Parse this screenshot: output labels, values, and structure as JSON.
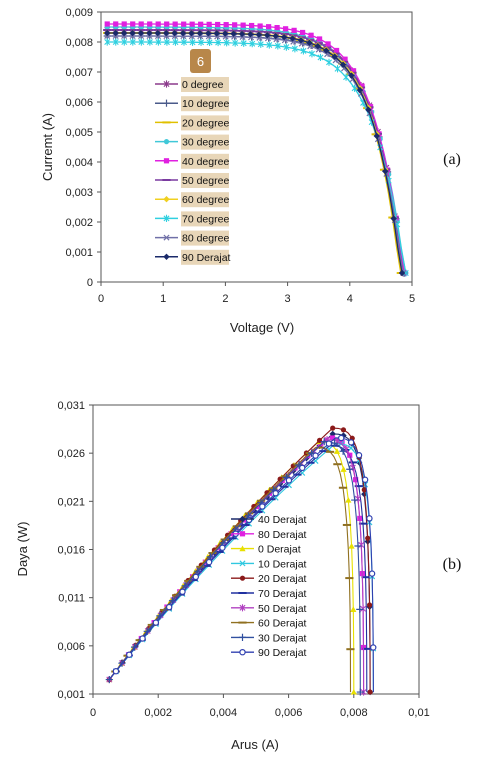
{
  "chart_data": [
    {
      "type": "line",
      "panel_label": "(a)",
      "badge": "6",
      "xlabel": "Voltage  (V)",
      "ylabel": "Curremt (A)",
      "xlim": [
        0,
        5
      ],
      "ylim": [
        0,
        0.009
      ],
      "xticks": [
        "0",
        "1",
        "2",
        "3",
        "4",
        "5"
      ],
      "yticks": [
        "0",
        "0,001",
        "0,002",
        "0,003",
        "0,004",
        "0,005",
        "0,006",
        "0,007",
        "0,008",
        "0,009"
      ],
      "legend_position": "left-center",
      "series": [
        {
          "name": "0 degree",
          "color": "#8b3a8b",
          "marker": "asterisk",
          "isc": 0.0084,
          "voc": 4.86,
          "k": 0.45
        },
        {
          "name": "10 degree",
          "color": "#4a5a8a",
          "marker": "plus",
          "isc": 0.0082,
          "voc": 4.88,
          "k": 0.46
        },
        {
          "name": "20 degree",
          "color": "#e0c000",
          "marker": "dash",
          "isc": 0.0083,
          "voc": 4.82,
          "k": 0.45
        },
        {
          "name": "30 degree",
          "color": "#40c8d8",
          "marker": "circle",
          "isc": 0.0085,
          "voc": 4.9,
          "k": 0.5
        },
        {
          "name": "40 degree",
          "color": "#e020e0",
          "marker": "square",
          "isc": 0.0086,
          "voc": 4.88,
          "k": 0.48
        },
        {
          "name": "50 degree",
          "color": "#7a3aa0",
          "marker": "dash",
          "isc": 0.0084,
          "voc": 4.86,
          "k": 0.46
        },
        {
          "name": "60 degree",
          "color": "#f0d020",
          "marker": "diamond",
          "isc": 0.0083,
          "voc": 4.84,
          "k": 0.45
        },
        {
          "name": "70 degree",
          "color": "#30d0e0",
          "marker": "asterisk",
          "isc": 0.008,
          "voc": 4.9,
          "k": 0.5
        },
        {
          "name": "80 degree",
          "color": "#7070a8",
          "marker": "x",
          "isc": 0.0082,
          "voc": 4.86,
          "k": 0.47
        },
        {
          "name": "90 Derajat",
          "color": "#1a2a6a",
          "marker": "diamond",
          "isc": 0.0083,
          "voc": 4.84,
          "k": 0.46
        }
      ]
    },
    {
      "type": "line",
      "panel_label": "(b)",
      "xlabel": "Arus (A)",
      "ylabel": "Daya (W)",
      "xlim": [
        0,
        0.01
      ],
      "ylim": [
        0.001,
        0.031
      ],
      "xticks": [
        "0",
        "0,002",
        "0,004",
        "0,006",
        "0,008",
        "0,01"
      ],
      "yticks": [
        "0,001",
        "0,006",
        "0,011",
        "0,016",
        "0,021",
        "0,026",
        "0,031"
      ],
      "legend_position": "center-right",
      "series": [
        {
          "name": "40 Derajat",
          "color": "#1a2a6a",
          "marker": "diamond",
          "imax": 0.0085,
          "pmax": 0.028
        },
        {
          "name": "80  Derajat",
          "color": "#e020e0",
          "marker": "square",
          "imax": 0.0083,
          "pmax": 0.0276
        },
        {
          "name": "0  Derajat",
          "color": "#e8e000",
          "marker": "triangle",
          "imax": 0.008,
          "pmax": 0.0272
        },
        {
          "name": "10 Derajat",
          "color": "#30c8e0",
          "marker": "x",
          "imax": 0.0086,
          "pmax": 0.027
        },
        {
          "name": "20 Derajat",
          "color": "#8b1a1a",
          "marker": "circle",
          "imax": 0.0085,
          "pmax": 0.0286
        },
        {
          "name": "70 Derajat",
          "color": "#2030a0",
          "marker": "dash",
          "imax": 0.0084,
          "pmax": 0.0268
        },
        {
          "name": "50 Derajat",
          "color": "#b040c0",
          "marker": "asterisk",
          "imax": 0.0083,
          "pmax": 0.0274
        },
        {
          "name": "60 Derajat",
          "color": "#907020",
          "marker": "dash",
          "imax": 0.0079,
          "pmax": 0.0266
        },
        {
          "name": "30 Derajat",
          "color": "#3050a0",
          "marker": "plus",
          "imax": 0.0082,
          "pmax": 0.0272
        },
        {
          "name": "90 Derajat",
          "color": "#3040b0",
          "marker": "circle-open",
          "imax": 0.0086,
          "pmax": 0.0276
        }
      ]
    }
  ]
}
